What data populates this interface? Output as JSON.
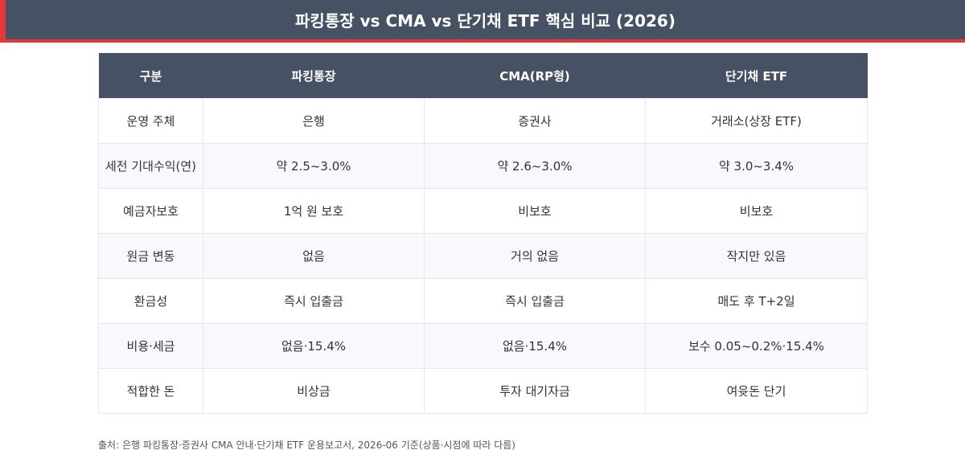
{
  "title": "파킹통장 vs CMA vs 단기채 ETF 핵심 비교 (2026)",
  "colors": {
    "header_bg": "#465164",
    "accent": "#e53935",
    "stripe_bg": "#f7f9fc",
    "border": "#e4e7ec"
  },
  "table": {
    "headers": [
      "구분",
      "파킹통장",
      "CMA(RP형)",
      "단기채 ETF"
    ],
    "rows": [
      [
        "운영 주체",
        "은행",
        "증권사",
        "거래소(상장 ETF)"
      ],
      [
        "세전 기대수익(연)",
        "약 2.5~3.0%",
        "약 2.6~3.0%",
        "약 3.0~3.4%"
      ],
      [
        "예금자보호",
        "1억 원 보호",
        "비보호",
        "비보호"
      ],
      [
        "원금 변동",
        "없음",
        "거의 없음",
        "작지만 있음"
      ],
      [
        "환금성",
        "즉시 입출금",
        "즉시 입출금",
        "매도 후 T+2일"
      ],
      [
        "비용·세금",
        "없음·15.4%",
        "없음·15.4%",
        "보수 0.05~0.2%·15.4%"
      ],
      [
        "적합한 돈",
        "비상금",
        "투자 대기자금",
        "여윳돈 단기"
      ]
    ]
  },
  "source_note": "출처: 은행 파킹통장·증권사 CMA 안내·단기채 ETF 운용보고서, 2026-06 기준(상품·시점에 따라 다름)"
}
